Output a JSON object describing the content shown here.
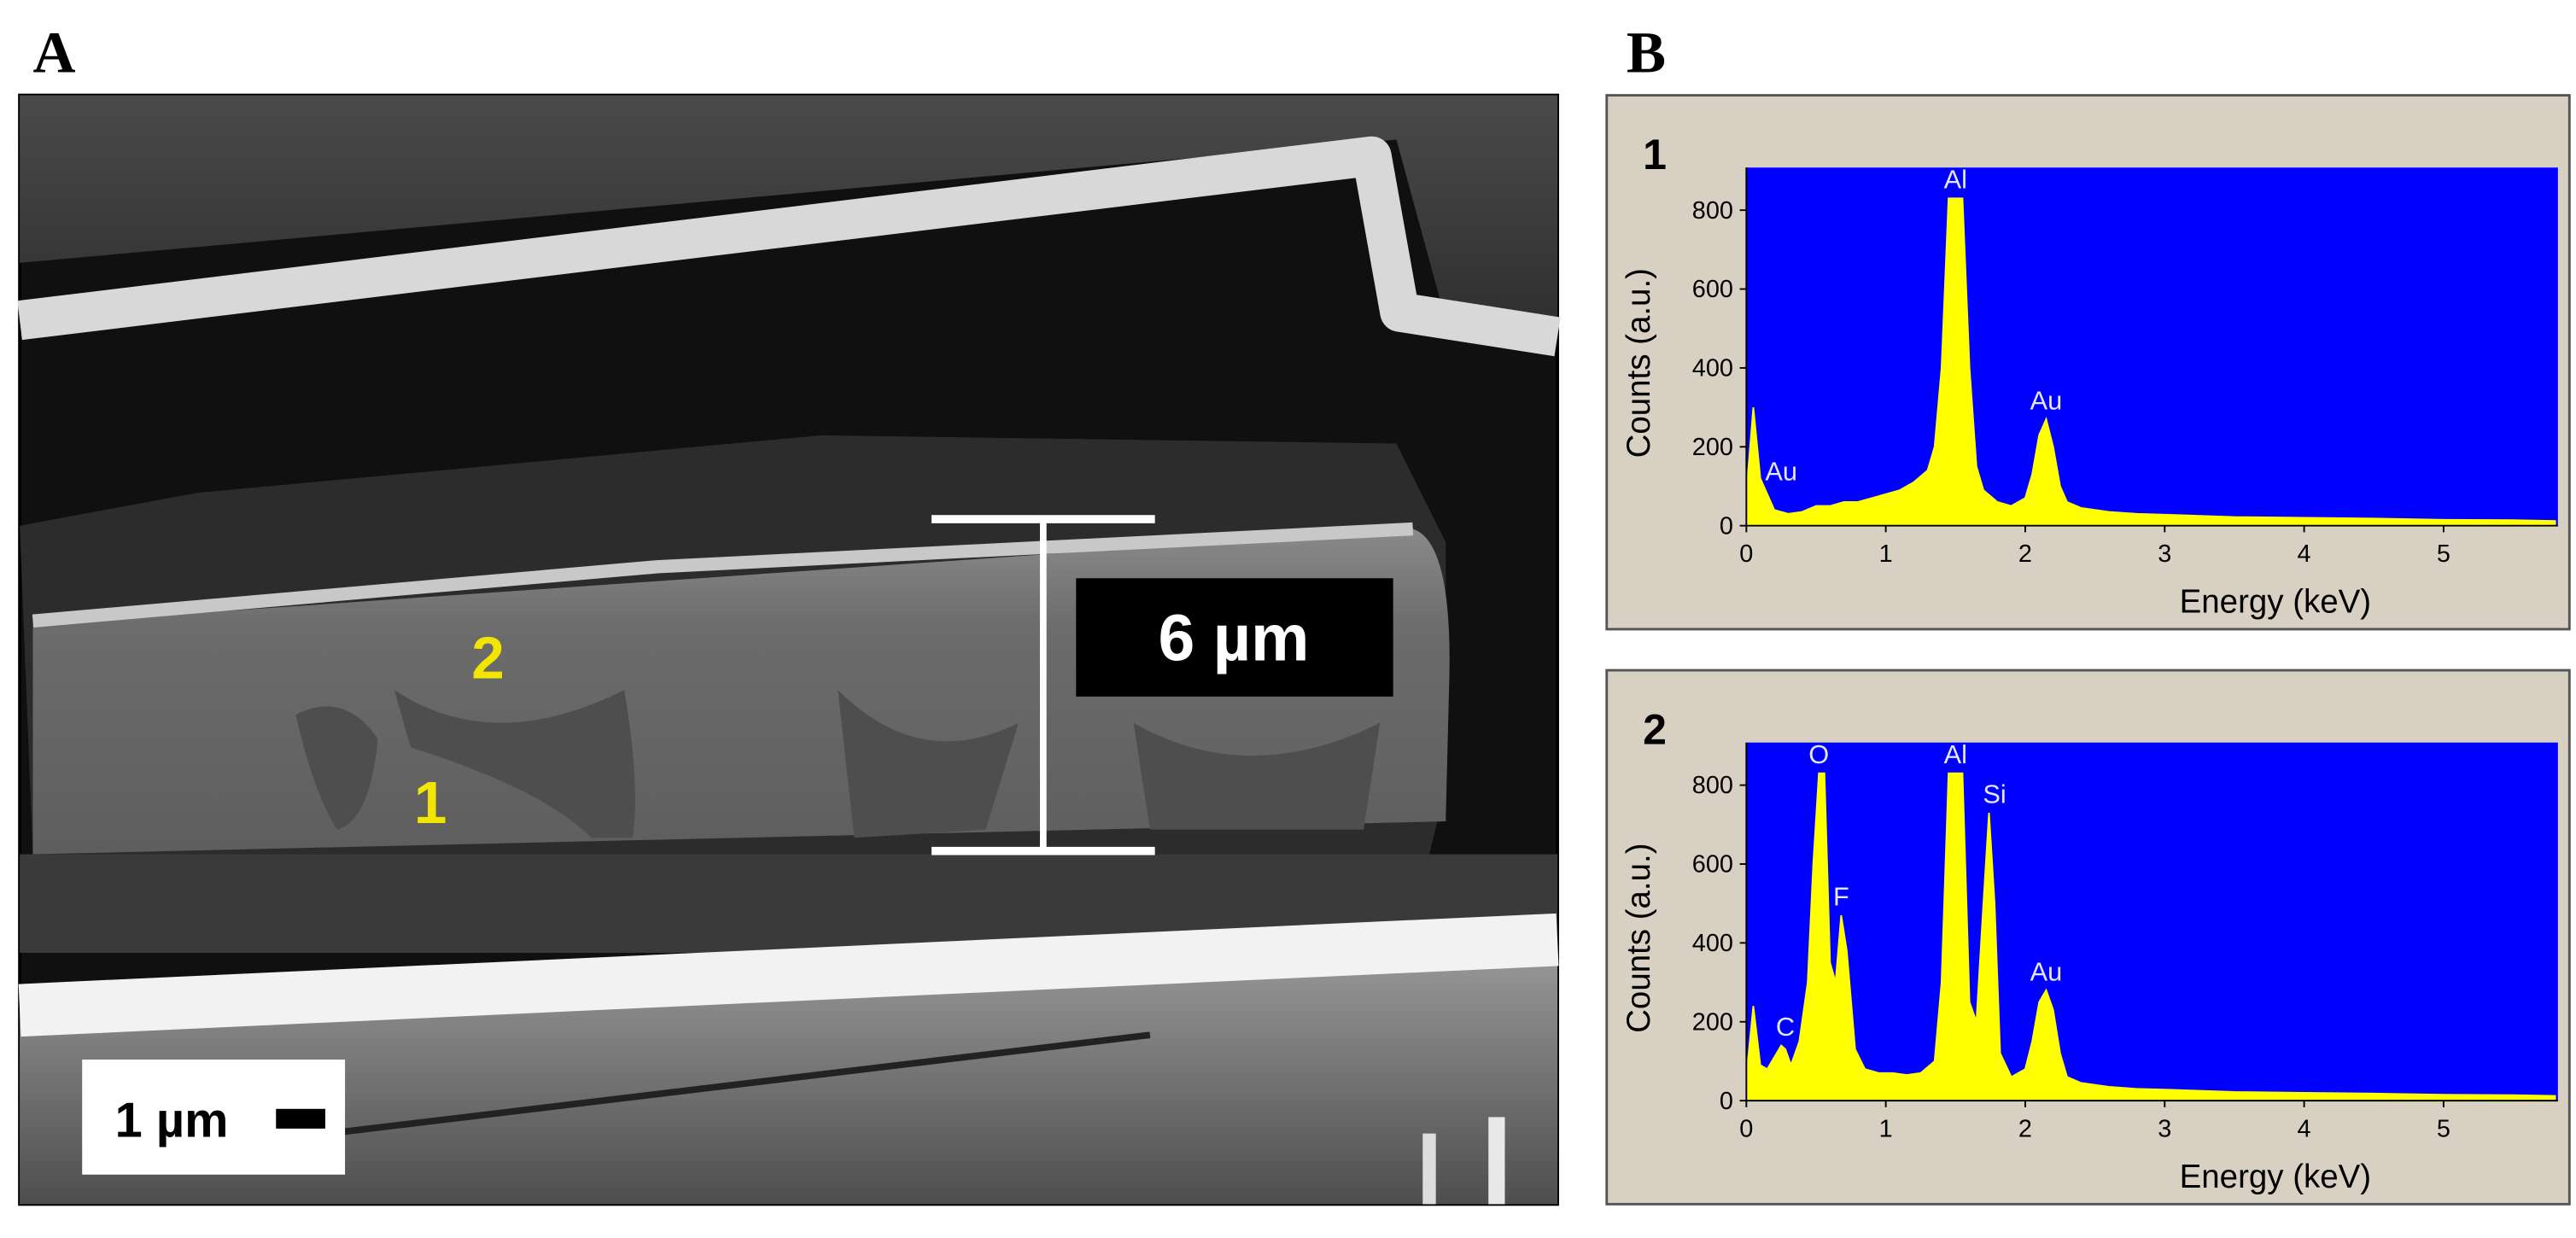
{
  "figure": {
    "panel_labels": [
      "A",
      "B"
    ],
    "image": {
      "region_labels": [
        "2",
        "1"
      ],
      "measurement": "6 µm",
      "scale_bar": "1 µm"
    }
  },
  "chart_data": [
    {
      "type": "area",
      "label": "1",
      "x_label": "Energy (keV)",
      "y_label": "Counts (a.u.)",
      "x": [
        0,
        0.05,
        0.1,
        0.2,
        0.3,
        0.4,
        0.5,
        0.6,
        0.7,
        0.8,
        0.9,
        1.0,
        1.1,
        1.2,
        1.3,
        1.35,
        1.4,
        1.45,
        1.5,
        1.55,
        1.6,
        1.65,
        1.7,
        1.8,
        1.9,
        2.0,
        2.05,
        2.1,
        2.15,
        2.2,
        2.25,
        2.3,
        2.4,
        2.6,
        2.8,
        3.0,
        3.5,
        4.0,
        4.5,
        5.0,
        5.5,
        5.8
      ],
      "values": [
        80,
        300,
        120,
        40,
        30,
        35,
        50,
        50,
        60,
        60,
        70,
        80,
        90,
        110,
        140,
        200,
        400,
        830,
        830,
        830,
        400,
        150,
        90,
        60,
        50,
        70,
        130,
        230,
        270,
        200,
        100,
        60,
        45,
        35,
        30,
        28,
        22,
        20,
        18,
        15,
        14,
        12
      ],
      "color": "#ffff00",
      "background": "#0000ff",
      "xlim": [
        0,
        5.82
      ],
      "ylim": [
        0,
        908
      ],
      "xticks": [
        0,
        1,
        2,
        3,
        4,
        5
      ],
      "yticks": [
        0,
        200,
        400,
        600,
        800
      ],
      "annotations": [
        {
          "text": "Au",
          "x": 0.25,
          "y": 90
        },
        {
          "text": "Al",
          "x": 1.5,
          "y": 830
        },
        {
          "text": "Au",
          "x": 2.15,
          "y": 270
        }
      ]
    },
    {
      "type": "area",
      "label": "2",
      "x_label": "Energy (keV)",
      "y_label": "Counts (a.u.)",
      "x": [
        0,
        0.05,
        0.1,
        0.15,
        0.2,
        0.25,
        0.28,
        0.32,
        0.38,
        0.44,
        0.48,
        0.52,
        0.56,
        0.6,
        0.64,
        0.68,
        0.72,
        0.78,
        0.85,
        0.95,
        1.05,
        1.15,
        1.25,
        1.35,
        1.4,
        1.45,
        1.5,
        1.55,
        1.6,
        1.65,
        1.7,
        1.74,
        1.78,
        1.82,
        1.9,
        2.0,
        2.05,
        2.1,
        2.15,
        2.2,
        2.25,
        2.3,
        2.4,
        2.6,
        2.8,
        3.0,
        3.5,
        4.0,
        4.5,
        5.0,
        5.5,
        5.8
      ],
      "values": [
        60,
        240,
        90,
        80,
        110,
        140,
        130,
        90,
        150,
        300,
        600,
        830,
        830,
        350,
        300,
        470,
        380,
        130,
        80,
        70,
        70,
        65,
        70,
        100,
        300,
        830,
        830,
        830,
        250,
        200,
        500,
        730,
        500,
        120,
        60,
        80,
        150,
        250,
        280,
        230,
        120,
        60,
        45,
        35,
        30,
        28,
        22,
        20,
        18,
        15,
        14,
        12
      ],
      "color": "#ffff00",
      "background": "#0000ff",
      "xlim": [
        0,
        5.82
      ],
      "ylim": [
        0,
        908
      ],
      "xticks": [
        0,
        1,
        2,
        3,
        4,
        5
      ],
      "yticks": [
        0,
        200,
        400,
        600,
        800
      ],
      "annotations": [
        {
          "text": "C",
          "x": 0.28,
          "y": 140
        },
        {
          "text": "O",
          "x": 0.52,
          "y": 830
        },
        {
          "text": "F",
          "x": 0.68,
          "y": 470
        },
        {
          "text": "Al",
          "x": 1.5,
          "y": 830
        },
        {
          "text": "Si",
          "x": 1.78,
          "y": 730
        },
        {
          "text": "Au",
          "x": 2.15,
          "y": 280
        }
      ]
    }
  ]
}
